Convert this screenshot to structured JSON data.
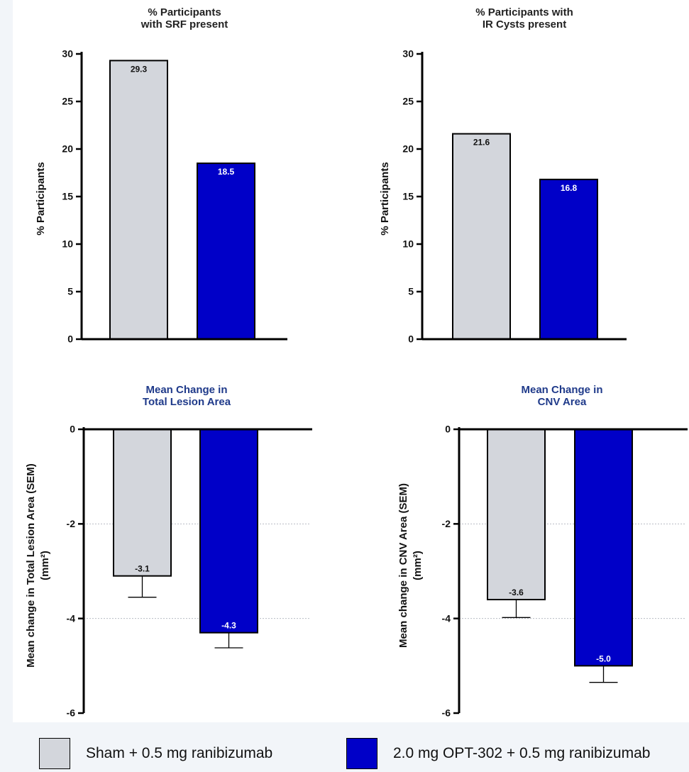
{
  "colors": {
    "sham": "#d3d6dc",
    "opt": "#0000c8",
    "title": "#222222",
    "title_blue": "#1f3a8a"
  },
  "legend": [
    {
      "label": "Sham + 0.5 mg ranibizumab",
      "color": "#d3d6dc"
    },
    {
      "label": "2.0 mg OPT-302 + 0.5 mg ranibizumab",
      "color": "#0000c8"
    }
  ],
  "chart_data": [
    {
      "type": "bar",
      "title_lines": [
        "% Participants",
        "with SRF present"
      ],
      "ylabel_lines": [
        "% Participants"
      ],
      "ylim": [
        0,
        30
      ],
      "yticks": [
        0,
        5,
        10,
        15,
        20,
        25,
        30
      ],
      "series": [
        {
          "name": "Sham + 0.5 mg ranibizumab",
          "values": [
            29.3
          ],
          "labels": [
            "29.3"
          ]
        },
        {
          "name": "2.0 mg OPT-302 + 0.5 mg ranibizumab",
          "values": [
            18.5
          ],
          "labels": [
            "18.5"
          ]
        }
      ],
      "grid": false
    },
    {
      "type": "bar",
      "title_lines": [
        "% Participants with",
        "IR Cysts present"
      ],
      "ylabel_lines": [
        "% Participants"
      ],
      "ylim": [
        0,
        30
      ],
      "yticks": [
        0,
        5,
        10,
        15,
        20,
        25,
        30
      ],
      "series": [
        {
          "name": "Sham + 0.5 mg ranibizumab",
          "values": [
            21.6
          ],
          "labels": [
            "21.6"
          ]
        },
        {
          "name": "2.0 mg OPT-302 + 0.5 mg ranibizumab",
          "values": [
            16.8
          ],
          "labels": [
            "16.8"
          ]
        }
      ],
      "grid": false
    },
    {
      "type": "bar",
      "title_lines": [
        "Mean Change in",
        "Total Lesion Area"
      ],
      "ylabel_lines": [
        "Mean  change in Total  Lesion Area (SEM)",
        "(mm²)"
      ],
      "ylim": [
        -6,
        0
      ],
      "yticks": [
        0,
        -2,
        -4,
        -6
      ],
      "series": [
        {
          "name": "Sham + 0.5 mg ranibizumab",
          "values": [
            -3.1
          ],
          "sem": [
            0.45
          ],
          "labels": [
            "-3.1"
          ]
        },
        {
          "name": "2.0 mg OPT-302 + 0.5 mg ranibizumab",
          "values": [
            -4.3
          ],
          "sem": [
            0.32
          ],
          "labels": [
            "-4.3"
          ]
        }
      ],
      "grid": true
    },
    {
      "type": "bar",
      "title_lines": [
        "Mean Change in",
        "CNV Area"
      ],
      "ylabel_lines": [
        "Mean  change in CNV  Area (SEM)",
        "(mm²)"
      ],
      "ylim": [
        -6,
        0
      ],
      "yticks": [
        0,
        -2,
        -4,
        -6
      ],
      "series": [
        {
          "name": "Sham + 0.5 mg ranibizumab",
          "values": [
            -3.6
          ],
          "sem": [
            0.38
          ],
          "labels": [
            "-3.6"
          ]
        },
        {
          "name": "2.0 mg OPT-302 + 0.5 mg ranibizumab",
          "values": [
            -5.0
          ],
          "sem": [
            0.35
          ],
          "labels": [
            "-5.0"
          ]
        }
      ],
      "grid": true
    }
  ]
}
